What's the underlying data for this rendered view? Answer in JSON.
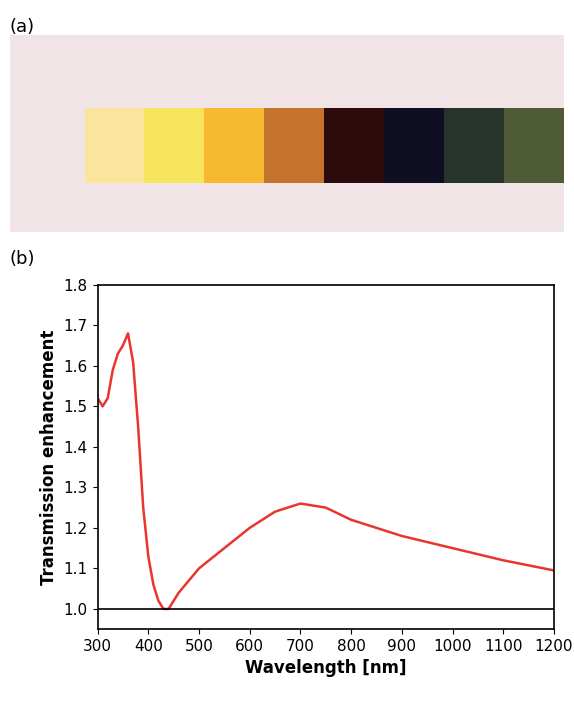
{
  "panel_labels": [
    "(a)",
    "(b)"
  ],
  "swatches": {
    "background": "#f1e4e6",
    "colors": [
      "#f9e59c",
      "#f5e45c",
      "#f7b92f",
      "#c4732c",
      "#2c0b0c",
      "#0f0e22",
      "#27342d",
      "#4f5a36"
    ]
  },
  "chart_data": {
    "type": "line",
    "x_label": "Wavelength [nm]",
    "y_label": "Transmission enhancement",
    "x": [
      300,
      310,
      320,
      330,
      340,
      350,
      360,
      370,
      380,
      390,
      400,
      410,
      420,
      430,
      440,
      450,
      460,
      480,
      500,
      550,
      600,
      650,
      700,
      750,
      800,
      850,
      900,
      1000,
      1100,
      1200
    ],
    "values": [
      1.52,
      1.5,
      1.52,
      1.59,
      1.63,
      1.65,
      1.68,
      1.61,
      1.45,
      1.25,
      1.13,
      1.06,
      1.02,
      1.0,
      1.0,
      1.02,
      1.04,
      1.07,
      1.1,
      1.15,
      1.2,
      1.24,
      1.26,
      1.25,
      1.22,
      1.2,
      1.18,
      1.15,
      1.12,
      1.095
    ],
    "color": "#e8362d",
    "reference_line": 1.0,
    "xlim": [
      300,
      1200
    ],
    "xticks": [
      300,
      400,
      500,
      600,
      700,
      800,
      900,
      1000,
      1100,
      1200
    ],
    "ylim": [
      0.95,
      1.8
    ],
    "yticks": [
      {
        "value": 1.0,
        "label": "1.0"
      },
      1.1,
      1.2,
      1.3,
      1.4,
      1.5,
      1.6,
      1.7,
      1.8
    ],
    "grid": false
  }
}
